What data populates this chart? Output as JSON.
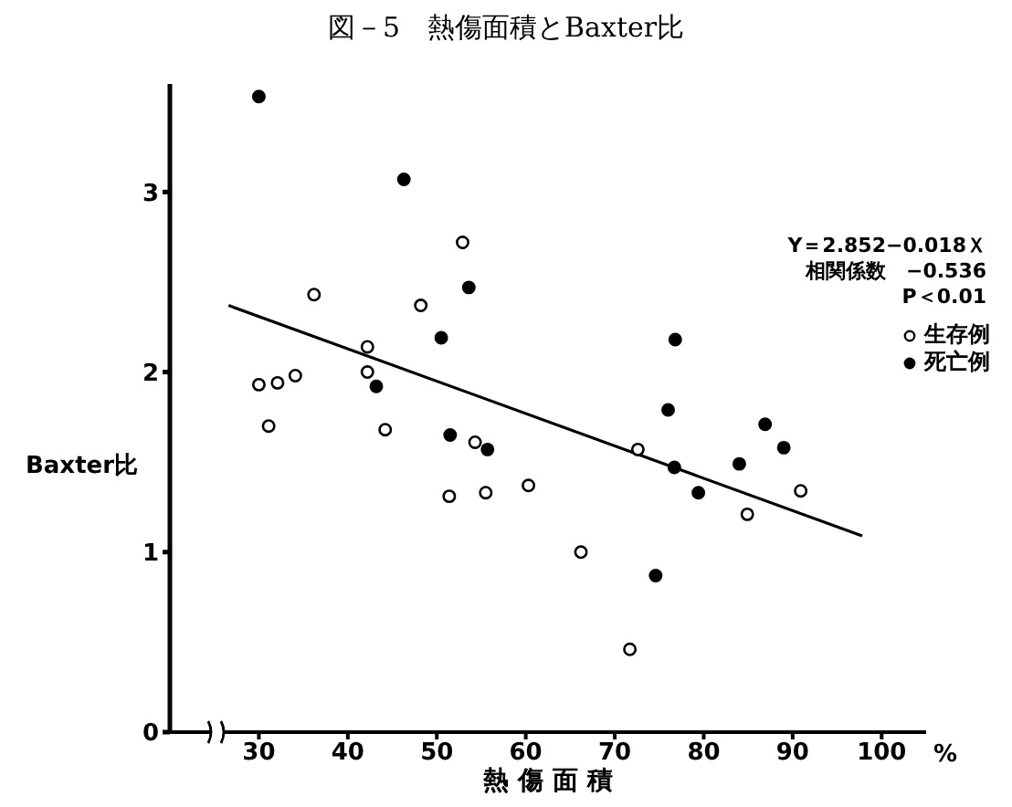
{
  "chart_data": {
    "type": "scatter",
    "title": "図－5　熱傷面積とBaxter比",
    "xlabel": "熱 傷 面 積",
    "ylabel": "Baxter比",
    "annotations": [
      "Y＝2.852−0.018Ｘ",
      "相関係数　−0.536",
      "P＜0.01",
      "%"
    ],
    "xlim": [
      20,
      105
    ],
    "xticks": [
      30,
      40,
      50,
      60,
      70,
      80,
      90,
      100
    ],
    "ylim": [
      0,
      3.6
    ],
    "yticks": [
      0,
      1,
      2,
      3
    ],
    "grid": false,
    "legend": "right",
    "marker": "circle",
    "series": [
      {
        "name": "生存例",
        "color": "#ffffff",
        "x": [
          52.9,
          36.2,
          48.2,
          42.2,
          42.2,
          30,
          32.1,
          34.1,
          31.1,
          44.2,
          54.3,
          51.4,
          55.5,
          60.3,
          66.2,
          72.6,
          90.9,
          84.9,
          71.7
        ],
        "values": [
          2.72,
          2.43,
          2.37,
          2.14,
          2.0,
          1.93,
          1.94,
          1.98,
          1.7,
          1.68,
          1.61,
          1.31,
          1.33,
          1.37,
          1.0,
          1.57,
          1.34,
          1.21,
          0.46
        ]
      },
      {
        "name": "死亡例",
        "color": "#000000",
        "x": [
          30,
          46.3,
          53.6,
          50.5,
          43.2,
          51.5,
          55.7,
          76.8,
          76.0,
          86.9,
          89.0,
          76.7,
          84.0,
          79.4,
          74.6
        ],
        "values": [
          3.53,
          3.07,
          2.47,
          2.19,
          1.92,
          1.65,
          1.57,
          2.18,
          1.79,
          1.71,
          1.58,
          1.47,
          1.49,
          1.33,
          0.87
        ]
      },
      {
        "type": "line",
        "color": "#000000",
        "marker": "none",
        "x": [
          26.6,
          97.8
        ],
        "values": [
          2.37,
          1.09
        ]
      }
    ]
  }
}
